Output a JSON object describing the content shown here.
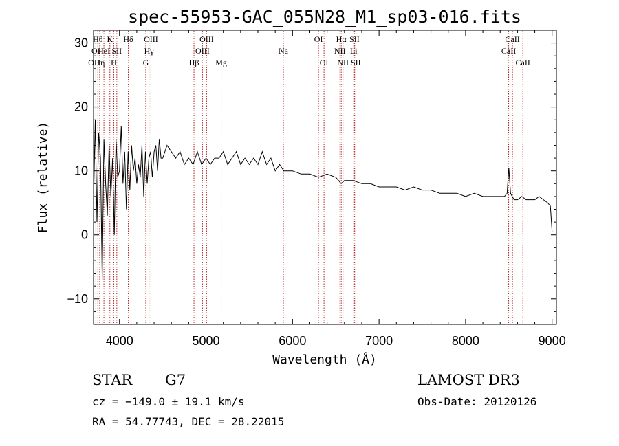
{
  "chart_data": {
    "type": "line",
    "title": "spec-55953-GAC_055N28_M1_sp03-016.fits",
    "xlabel": "Wavelength (Å)",
    "ylabel": "Flux (relative)",
    "xlim": [
      3700,
      9050
    ],
    "ylim": [
      -14,
      32
    ],
    "xticks": [
      4000,
      5000,
      6000,
      7000,
      8000,
      9000
    ],
    "yticks": [
      -10,
      0,
      10,
      20,
      30
    ],
    "tick_labels_x": [
      "4000",
      "5000",
      "6000",
      "7000",
      "8000",
      "9000"
    ],
    "tick_labels_y": [
      "−10",
      "0",
      "10",
      "20",
      "30"
    ],
    "line_color": "#000000",
    "marker_color": "#b22222",
    "series": [
      {
        "name": "flux",
        "x": [
          3700,
          3720,
          3740,
          3760,
          3780,
          3800,
          3820,
          3840,
          3860,
          3880,
          3900,
          3920,
          3940,
          3960,
          3980,
          4000,
          4020,
          4040,
          4060,
          4080,
          4100,
          4120,
          4140,
          4160,
          4180,
          4200,
          4220,
          4240,
          4260,
          4280,
          4300,
          4320,
          4340,
          4360,
          4380,
          4400,
          4420,
          4440,
          4460,
          4480,
          4500,
          4550,
          4600,
          4650,
          4700,
          4750,
          4800,
          4850,
          4900,
          4950,
          5000,
          5050,
          5100,
          5150,
          5200,
          5250,
          5300,
          5350,
          5400,
          5450,
          5500,
          5550,
          5600,
          5650,
          5700,
          5750,
          5800,
          5850,
          5900,
          5950,
          6000,
          6100,
          6200,
          6300,
          6400,
          6500,
          6563,
          6600,
          6700,
          6800,
          6900,
          7000,
          7100,
          7200,
          7300,
          7400,
          7500,
          7600,
          7700,
          7800,
          7900,
          8000,
          8100,
          8200,
          8300,
          8400,
          8450,
          8480,
          8500,
          8520,
          8540,
          8560,
          8600,
          8650,
          8700,
          8750,
          8800,
          8850,
          8900,
          8950,
          8980,
          9000
        ],
        "values": [
          5,
          18,
          2,
          16,
          12,
          -7,
          15,
          8,
          3,
          14,
          6,
          12,
          0,
          15,
          9,
          10,
          17,
          8,
          13,
          4,
          13,
          7,
          14,
          10,
          12,
          8,
          11,
          9,
          14,
          6,
          13,
          8,
          12,
          13,
          9,
          13,
          14,
          10,
          15,
          12,
          12,
          14,
          13,
          12,
          13,
          11,
          12,
          11,
          13,
          11,
          12,
          11,
          12,
          12,
          13,
          11,
          12,
          13,
          11,
          12,
          11,
          12,
          11,
          13,
          11,
          12,
          10,
          11,
          10,
          10,
          10,
          9.5,
          9.5,
          9,
          9.5,
          9,
          8,
          8.5,
          8.5,
          8,
          8,
          7.5,
          7.5,
          7.5,
          7,
          7.5,
          7,
          7,
          6.5,
          6.5,
          6.5,
          6,
          6.5,
          6,
          6,
          6,
          6,
          6.5,
          10.5,
          6.5,
          6,
          5.5,
          5.5,
          6,
          5.5,
          5.5,
          5.5,
          6,
          5.5,
          5,
          4.5,
          0.5
        ]
      }
    ],
    "line_markers": [
      {
        "x": 3704,
        "label": "OII",
        "row": 2
      },
      {
        "x": 3727,
        "label": "OI",
        "row": 1
      },
      {
        "x": 3750,
        "label": "Hθ",
        "row": 0
      },
      {
        "x": 3771,
        "label": "Hη",
        "row": 2
      },
      {
        "x": 3820,
        "label": "HeI",
        "row": 1
      },
      {
        "x": 3889,
        "label": "K",
        "row": 0
      },
      {
        "x": 3934,
        "label": "H",
        "row": 2
      },
      {
        "x": 3969,
        "label": "SII",
        "row": 1
      },
      {
        "x": 4102,
        "label": "Hδ",
        "row": 0
      },
      {
        "x": 4304,
        "label": "G",
        "row": 2
      },
      {
        "x": 4341,
        "label": "Hγ",
        "row": 1
      },
      {
        "x": 4363,
        "label": "OIII",
        "row": 0
      },
      {
        "x": 4861,
        "label": "Hβ",
        "row": 2
      },
      {
        "x": 4959,
        "label": "OIII",
        "row": 1
      },
      {
        "x": 5007,
        "label": "OIII",
        "row": 0
      },
      {
        "x": 5175,
        "label": "Mg",
        "row": 2
      },
      {
        "x": 5894,
        "label": "Na",
        "row": 1
      },
      {
        "x": 6300,
        "label": "OI",
        "row": 0
      },
      {
        "x": 6364,
        "label": "OI",
        "row": 2
      },
      {
        "x": 6548,
        "label": "NII",
        "row": 1
      },
      {
        "x": 6563,
        "label": "Hα",
        "row": 0
      },
      {
        "x": 6583,
        "label": "NII",
        "row": 2
      },
      {
        "x": 6707,
        "label": "Li",
        "row": 1
      },
      {
        "x": 6716,
        "label": "SII",
        "row": 0
      },
      {
        "x": 6731,
        "label": "SII",
        "row": 2
      },
      {
        "x": 8498,
        "label": "CaII",
        "row": 1
      },
      {
        "x": 8542,
        "label": "CaII",
        "row": 0
      },
      {
        "x": 8662,
        "label": "CaII",
        "row": 2
      }
    ]
  },
  "info": {
    "object_class": "STAR",
    "subclass": "G7",
    "cz": "cz = −149.0 ± 19.1 km/s",
    "coords": "RA =  54.77743, DEC =  28.22015",
    "survey": "LAMOST DR3",
    "obs_date": "Obs-Date: 20120126"
  }
}
